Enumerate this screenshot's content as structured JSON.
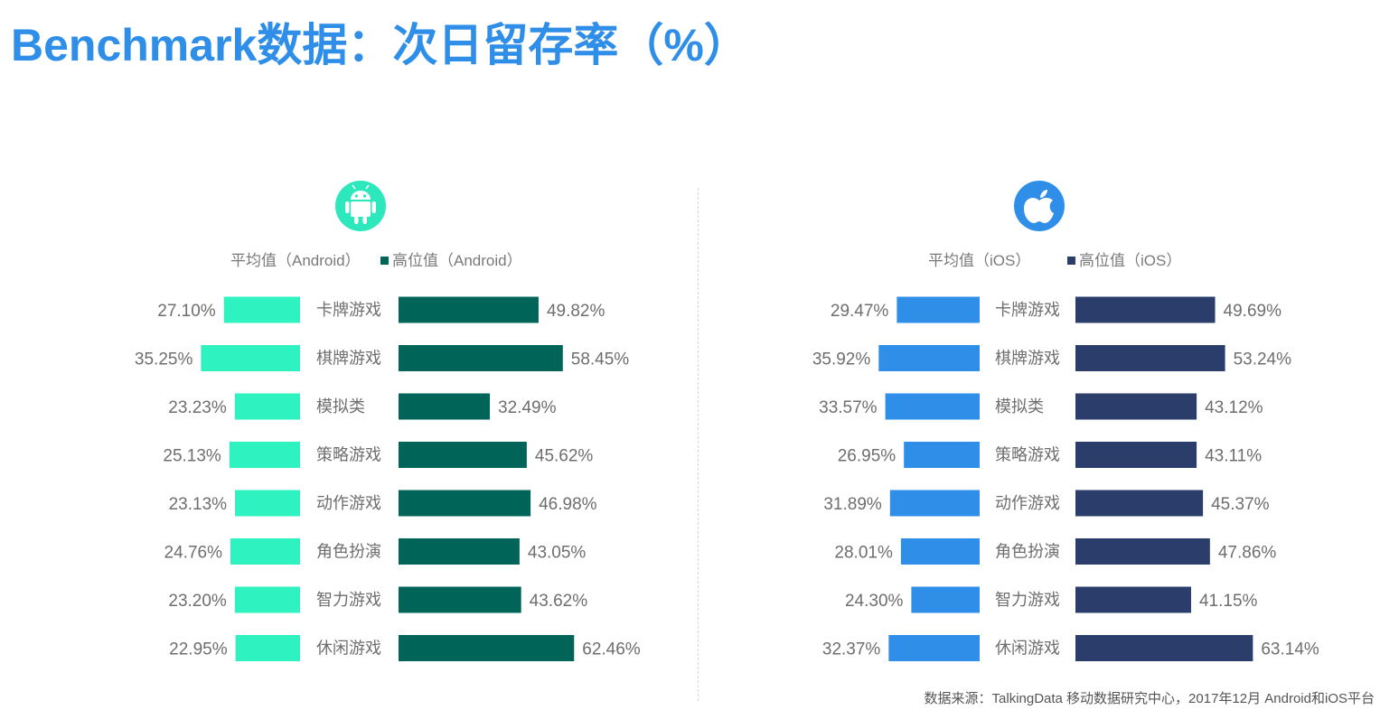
{
  "title": "Benchmark数据：次日留存率（%）",
  "source": "数据来源：TalkingData 移动数据研究中心，2017年12月 Android和iOS平台",
  "colors": {
    "title": "#2e8ee8",
    "android_icon": "#2ee8bd",
    "ios_icon": "#2e8ee8"
  },
  "chart_data": [
    {
      "type": "bar",
      "platform_icon": "android-icon",
      "categories": [
        "卡牌游戏",
        "棋牌游戏",
        "模拟类",
        "策略游戏",
        "动作游戏",
        "角色扮演",
        "智力游戏",
        "休闲游戏"
      ],
      "series": [
        {
          "name": "平均值（Android）",
          "color": "#2ef2bf",
          "direction": "left",
          "values": [
            27.1,
            35.25,
            23.23,
            25.13,
            23.13,
            24.76,
            23.2,
            22.95
          ],
          "labels": [
            "27.10%",
            "35.25%",
            "23.23%",
            "25.13%",
            "23.13%",
            "24.76%",
            "23.20%",
            "22.95%"
          ]
        },
        {
          "name": "高位值（Android）",
          "color": "#006458",
          "direction": "right",
          "values": [
            49.82,
            58.45,
            32.49,
            45.62,
            46.98,
            43.05,
            43.62,
            62.46
          ],
          "labels": [
            "49.82%",
            "58.45%",
            "32.49%",
            "45.62%",
            "46.98%",
            "43.05%",
            "43.62%",
            "62.46%"
          ]
        }
      ],
      "legend_position": "top"
    },
    {
      "type": "bar",
      "platform_icon": "apple-icon",
      "categories": [
        "卡牌游戏",
        "棋牌游戏",
        "模拟类",
        "策略游戏",
        "动作游戏",
        "角色扮演",
        "智力游戏",
        "休闲游戏"
      ],
      "series": [
        {
          "name": "平均值（iOS）",
          "color": "#2e8ee8",
          "direction": "left",
          "values": [
            29.47,
            35.92,
            33.57,
            26.95,
            31.89,
            28.01,
            24.3,
            32.37
          ],
          "labels": [
            "29.47%",
            "35.92%",
            "33.57%",
            "26.95%",
            "31.89%",
            "28.01%",
            "24.30%",
            "32.37%"
          ]
        },
        {
          "name": "高位值（iOS）",
          "color": "#2b3d6b",
          "direction": "right",
          "values": [
            49.69,
            53.24,
            43.12,
            43.11,
            45.37,
            47.86,
            41.15,
            63.14
          ],
          "labels": [
            "49.69%",
            "53.24%",
            "43.12%",
            "43.11%",
            "45.37%",
            "47.86%",
            "41.15%",
            "63.14%"
          ]
        }
      ],
      "legend_position": "top"
    }
  ]
}
